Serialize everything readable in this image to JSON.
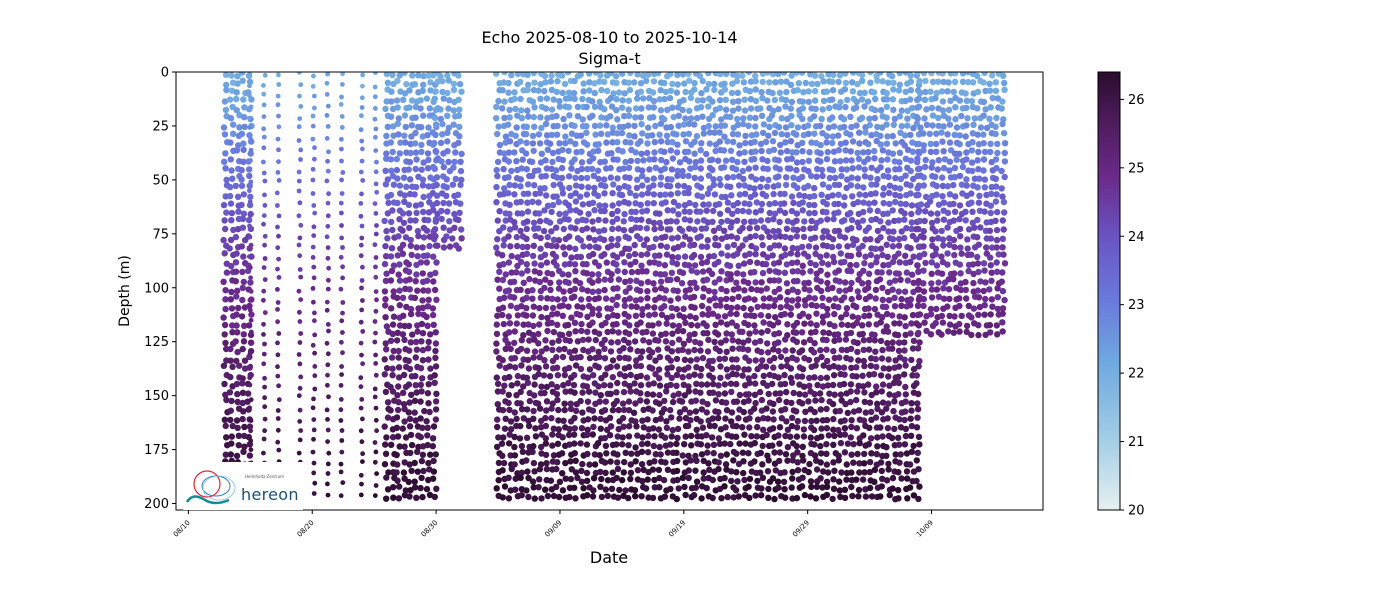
{
  "title_line1": "Echo 2025-08-10 to 2025-10-14",
  "title_line2": "Sigma-t",
  "logo": {
    "text": "hereon",
    "subtext": "Helmholtz-Zentrum"
  },
  "colors": {
    "cmap_low": "#e6f0f1",
    "cmap_mid_low": "#6fa8e0",
    "cmap_mid": "#6a62d0",
    "cmap_mid_high": "#6b2a8a",
    "cmap_high": "#2a0c2c"
  },
  "chart_data": {
    "type": "scatter",
    "xlabel": "Date",
    "ylabel": "Depth (m)",
    "x_ticks": [
      "08/10",
      "08/20",
      "08/30",
      "09/09",
      "09/19",
      "09/29",
      "10/09"
    ],
    "y_ticks": [
      0,
      25,
      50,
      75,
      100,
      125,
      150,
      175,
      200
    ],
    "xlim": [
      "2025-08-09",
      "2025-10-18"
    ],
    "ylim": [
      203,
      0
    ],
    "y_inverted": true,
    "colorbar": {
      "label": "",
      "ticks": [
        20,
        21,
        22,
        23,
        24,
        25,
        26
      ],
      "range": [
        20,
        26.4
      ],
      "colormap": "dense"
    },
    "grid": false,
    "segments": [
      {
        "start": "2025-08-13",
        "end": "2025-08-15",
        "max_depth": 200,
        "pattern": "dense"
      },
      {
        "start": "2025-08-15",
        "end": "2025-08-18",
        "max_depth": 195,
        "pattern": "sparse"
      },
      {
        "start": "2025-08-19",
        "end": "2025-08-23",
        "max_depth": 198,
        "pattern": "sparse"
      },
      {
        "start": "2025-08-24",
        "end": "2025-08-26",
        "max_depth": 198,
        "pattern": "sparse"
      },
      {
        "start": "2025-08-26",
        "end": "2025-08-30",
        "max_depth": 200,
        "pattern": "dense"
      },
      {
        "start": "2025-08-30",
        "end": "2025-09-01",
        "max_depth": 82,
        "pattern": "dense"
      },
      {
        "start": "2025-09-04",
        "end": "2025-10-08",
        "max_depth": 198,
        "pattern": "dense"
      },
      {
        "start": "2025-10-08",
        "end": "2025-10-15",
        "max_depth": 123,
        "pattern": "dense"
      }
    ],
    "sigma_profile": [
      {
        "depth": 0,
        "sigma_t": 22.0
      },
      {
        "depth": 25,
        "sigma_t": 22.6
      },
      {
        "depth": 50,
        "sigma_t": 23.4
      },
      {
        "depth": 75,
        "sigma_t": 24.3
      },
      {
        "depth": 100,
        "sigma_t": 24.8
      },
      {
        "depth": 125,
        "sigma_t": 25.2
      },
      {
        "depth": 150,
        "sigma_t": 25.6
      },
      {
        "depth": 175,
        "sigma_t": 26.0
      },
      {
        "depth": 200,
        "sigma_t": 26.3
      }
    ]
  }
}
